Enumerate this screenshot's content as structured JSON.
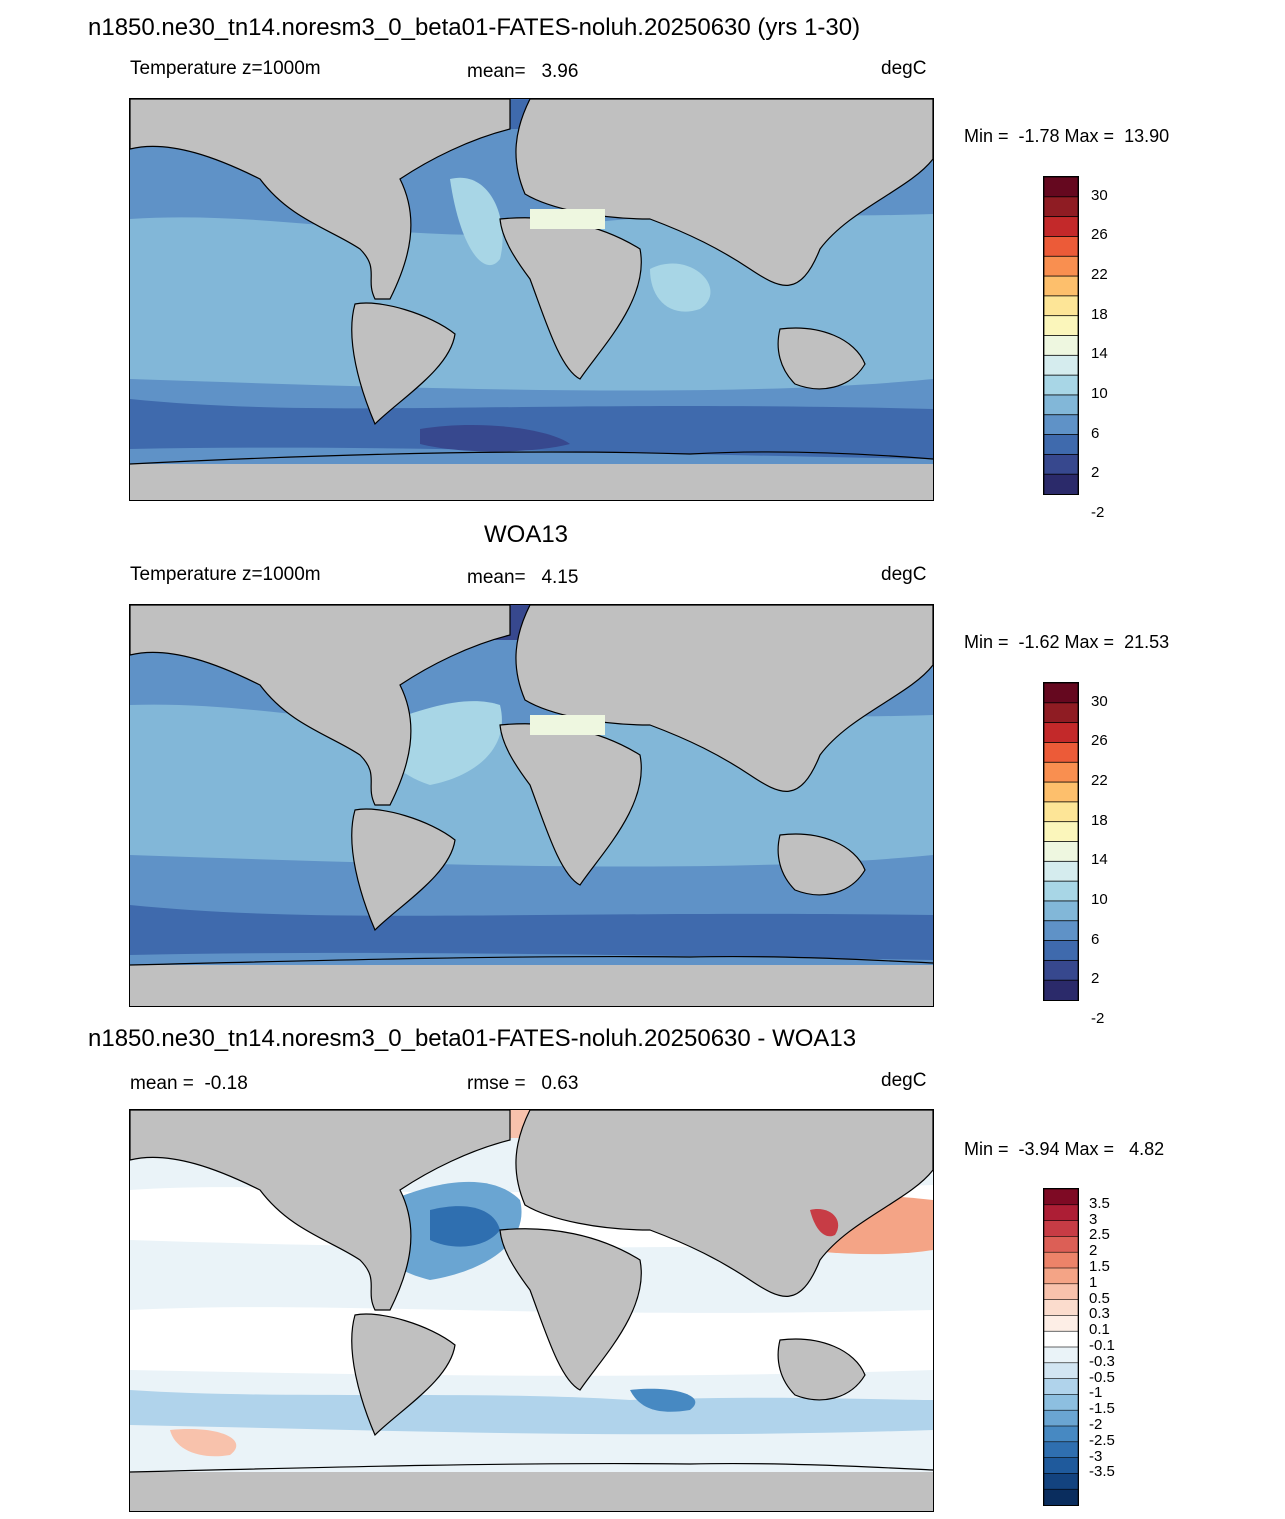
{
  "chart_data": [
    {
      "type": "heatmap",
      "title": "n1850.ne30_tn14.noresm3_0_beta01-FATES-noluh.20250630 (yrs 1-30)",
      "left_label": "Temperature z=1000m",
      "center_label": "mean=   3.96",
      "units": "degC",
      "minmax": "Min =  -1.78 Max =  13.90",
      "colorbar": {
        "colors": [
          "#2b2a6a",
          "#37488e",
          "#3f6aad",
          "#5f92c7",
          "#82b7d8",
          "#a8d6e6",
          "#d5ecee",
          "#eef7e0",
          "#fbf6bb",
          "#fde597",
          "#fdbf6c",
          "#f98f50",
          "#ec5b38",
          "#c3292a",
          "#8f1c23",
          "#65081f"
        ],
        "labels": [
          "30",
          "26",
          "22",
          "18",
          "14",
          "10",
          "6",
          "2",
          "-2"
        ]
      }
    },
    {
      "type": "heatmap",
      "title": "WOA13",
      "left_label": "Temperature z=1000m",
      "center_label": "mean=   4.15",
      "units": "degC",
      "minmax": "Min =  -1.62 Max =  21.53",
      "colorbar": {
        "colors": [
          "#2b2a6a",
          "#37488e",
          "#3f6aad",
          "#5f92c7",
          "#82b7d8",
          "#a8d6e6",
          "#d5ecee",
          "#eef7e0",
          "#fbf6bb",
          "#fde597",
          "#fdbf6c",
          "#f98f50",
          "#ec5b38",
          "#c3292a",
          "#8f1c23",
          "#65081f"
        ],
        "labels": [
          "30",
          "26",
          "22",
          "18",
          "14",
          "10",
          "6",
          "2",
          "-2"
        ]
      }
    },
    {
      "type": "heatmap",
      "title": "n1850.ne30_tn14.noresm3_0_beta01-FATES-noluh.20250630 - WOA13",
      "left_label": "mean =  -0.18",
      "center_label": "rmse =   0.63",
      "units": "degC",
      "minmax": "Min =  -3.94 Max =   4.82",
      "colorbar": {
        "colors": [
          "#0a2d5e",
          "#13437f",
          "#1f5a9c",
          "#2f6fb0",
          "#4789c2",
          "#6aa5d2",
          "#8dbfe0",
          "#b0d3eb",
          "#d2e5f2",
          "#eaf3f8",
          "#ffffff",
          "#fdeee6",
          "#fbdccd",
          "#f8c2ac",
          "#f4a486",
          "#ec8369",
          "#dc5f56",
          "#c73c45",
          "#ad1e35",
          "#7e0a24"
        ],
        "labels": [
          "3.5",
          "3",
          "2.5",
          "2",
          "1.5",
          "1",
          "0.5",
          "0.3",
          "0.1",
          "-0.1",
          "-0.3",
          "-0.5",
          "-1",
          "-1.5",
          "-2",
          "-2.5",
          "-3",
          "-3.5"
        ]
      }
    }
  ]
}
